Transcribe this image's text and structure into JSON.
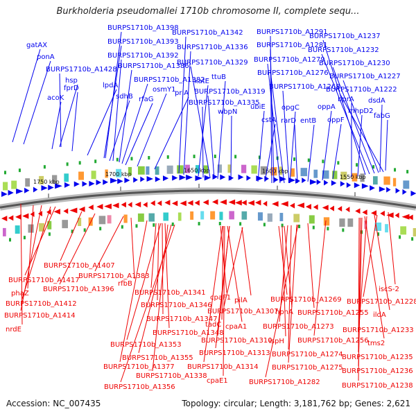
{
  "title": "Burkholderia pseudomallei 1710b chromosome II, complete sequ...",
  "footer": {
    "accession": "Accession: NC_007435",
    "stats": "Topology: circular; Length: 3,181,762 bp; Genes: 2,621"
  },
  "colors": {
    "forward": "#0000ee",
    "reverse": "#ee0000",
    "backbone": "#777777"
  },
  "kbp_ticks": [
    "1750 kbp",
    "1700 kbp",
    "1650 kbp",
    "1600 kbp",
    "1550 kbp"
  ],
  "forward_labels": [
    "gatAX",
    "ponA",
    "BURPS1710b_A1428",
    "hsp",
    "acoK",
    "fprD",
    "lpdA",
    "BURPS1710b_A1398",
    "BURPS1710b_A1393",
    "BURPS1710b_A1392",
    "BURPS1710b_A1386",
    "sdhB",
    "BURPS1710b_A1382",
    "rfaG",
    "osmY1",
    "priA",
    "BURPS1710b_A1342",
    "BURPS1710b_A1336",
    "katE",
    "BURPS1710b_A1329",
    "ttuB",
    "BURPS1710b_A1319",
    "BURPS1710b_A1335",
    "wbpN",
    "ubiE",
    "cstA",
    "BURPS1710b_A1291",
    "BURPS1710b_A1281",
    "BURPS1710b_A1279",
    "BURPS1710b_A1276",
    "BURPS1710b_A1268",
    "opgC",
    "rarD",
    "entB",
    "oppA",
    "oppF",
    "BURPS1710b_A1237",
    "BURPS1710b_A1232",
    "BURPS1710b_A1230",
    "BURPS1710b_A1227",
    "BURPS1710b_A1222",
    "bprA",
    "mhpD2",
    "dsdA",
    "fabG"
  ],
  "reverse_labels": [
    "BURPS1710b_A1407",
    "BURPS1710b_A1417",
    "phaZ",
    "BURPS1710b_A1396",
    "BURPS1710b_A1383",
    "rfbB",
    "BURPS1710b_A1412",
    "BURPS1710b_A1414",
    "nrdE",
    "BURPS1710b_A1341",
    "BURPS1710b_A1346",
    "BURPS1710b_A1347",
    "BURPS1710b_A1348",
    "BURPS1710b_A1353",
    "BURPS1710b_A1355",
    "BURPS1710b_A1377",
    "BURPS1710b_A1338",
    "BURPS1710b_A1356",
    "cpaF1",
    "pilA",
    "BURPS1710b_A1307",
    "tadC",
    "cpaA1",
    "BURPS1710b_A1310",
    "BURPS1710b_A1313",
    "BURPS1710b_A1314",
    "cpaE1",
    "BURPS1710b_A1269",
    "hpnA",
    "BURPS1710b_A1273",
    "ispH",
    "BURPS1710b_A1274",
    "BURPS1710b_A1275",
    "BURPS1710b_A1282",
    "BURPS1710b_A1255",
    "BURPS1710b_A1256",
    "iscS-2",
    "BURPS1710b_A1228",
    "ildA",
    "BURPS1710b_A1233",
    "tms2",
    "BURPS1710b_A1235",
    "BURPS1710b_A1236",
    "BURPS1710b_A1238"
  ]
}
